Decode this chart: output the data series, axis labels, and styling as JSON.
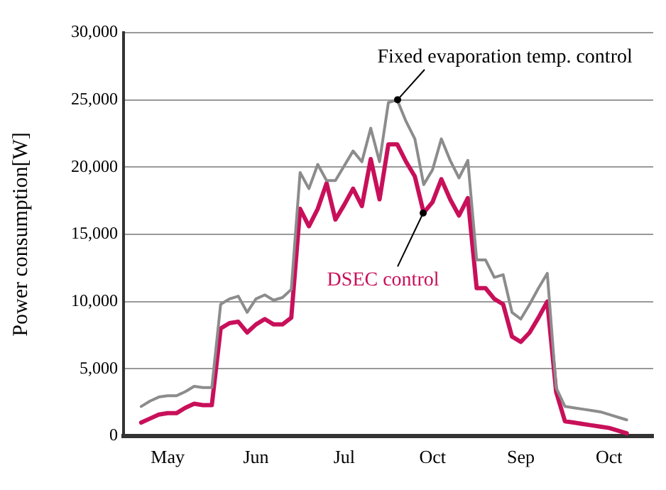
{
  "chart_data": {
    "type": "line",
    "ylabel": "Power consumption[W]",
    "categories": [
      null,
      null,
      null,
      null,
      null,
      "May",
      null,
      null,
      null,
      null,
      null,
      null,
      null,
      null,
      null,
      "Jun",
      null,
      null,
      null,
      null,
      null,
      null,
      null,
      null,
      null,
      "Jul",
      null,
      null,
      null,
      null,
      null,
      null,
      null,
      null,
      null,
      "Oct",
      null,
      null,
      null,
      null,
      null,
      null,
      null,
      null,
      null,
      "Sep",
      null,
      null,
      null,
      null,
      null,
      null,
      null,
      null,
      null,
      "Oct",
      null,
      null,
      null,
      null,
      null
    ],
    "ylim": [
      0,
      30000
    ],
    "yticks": [
      0,
      {
        "value": 5000,
        "label": "5,000"
      },
      {
        "value": 10000,
        "label": "10,000"
      },
      {
        "value": 15000,
        "label": "15,000"
      },
      {
        "value": 20000,
        "label": "20,000"
      },
      {
        "value": 25000,
        "label": "25,000"
      },
      {
        "value": 30000,
        "label": "30,000"
      }
    ],
    "grid": "y",
    "legend": false,
    "line_style": "solid",
    "series": [
      {
        "name": "Fixed evaporation temp. control",
        "color": "#8c8c8c",
        "values": [
          null,
          null,
          2200,
          2600,
          2900,
          3000,
          3000,
          3300,
          3700,
          3600,
          3600,
          9800,
          10200,
          10400,
          9200,
          10200,
          10500,
          10100,
          10300,
          10900,
          19600,
          18400,
          20200,
          19000,
          19000,
          20100,
          21200,
          20400,
          22900,
          20400,
          24800,
          25000,
          23400,
          22100,
          18700,
          19800,
          22100,
          20500,
          19200,
          20500,
          13100,
          13100,
          11800,
          12000,
          9200,
          8700,
          9800,
          11000,
          12100,
          3600,
          2200,
          2100,
          2000,
          1900,
          1800,
          1600,
          1400,
          1200,
          null,
          null,
          null
        ]
      },
      {
        "name": "DSEC control",
        "color": "#c8105a",
        "values": [
          null,
          null,
          1000,
          1300,
          1600,
          1700,
          1700,
          2100,
          2400,
          2300,
          2300,
          8000,
          8400,
          8500,
          7700,
          8300,
          8700,
          8300,
          8300,
          8800,
          16900,
          15600,
          16900,
          18800,
          16100,
          17200,
          18400,
          17100,
          20600,
          17600,
          21700,
          21700,
          20400,
          19300,
          16600,
          17400,
          19100,
          17600,
          16400,
          17700,
          11000,
          11000,
          10200,
          9800,
          7400,
          7000,
          7700,
          8800,
          10000,
          3300,
          1100,
          1000,
          900,
          800,
          700,
          600,
          400,
          200,
          null,
          null,
          null
        ]
      }
    ]
  }
}
